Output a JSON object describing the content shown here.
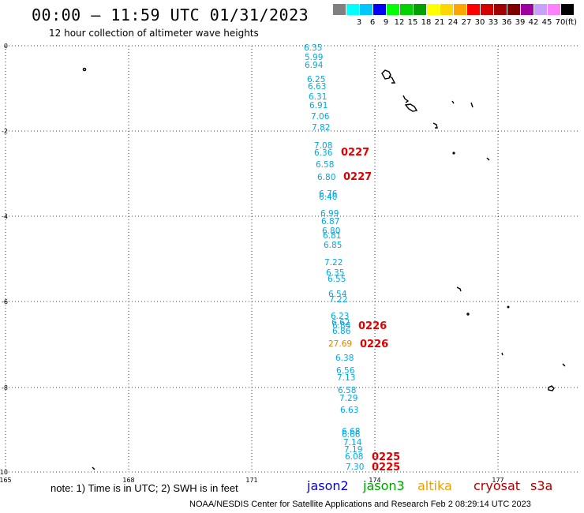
{
  "header": {
    "title": "00:00 – 11:59 UTC 01/31/2023",
    "subtitle": "12 hour collection of altimeter wave heights"
  },
  "color_scale": {
    "unit": "(ft)",
    "swatches": [
      {
        "label": "",
        "color": "#808080"
      },
      {
        "label": "3",
        "color": "#00ffff"
      },
      {
        "label": "6",
        "color": "#00c8ff"
      },
      {
        "label": "9",
        "color": "#0000ff"
      },
      {
        "label": "12",
        "color": "#00ff00"
      },
      {
        "label": "15",
        "color": "#00d200"
      },
      {
        "label": "18",
        "color": "#00a000"
      },
      {
        "label": "21",
        "color": "#ffff00"
      },
      {
        "label": "24",
        "color": "#ffd700"
      },
      {
        "label": "27",
        "color": "#ffa500"
      },
      {
        "label": "30",
        "color": "#ff0000"
      },
      {
        "label": "33",
        "color": "#d20000"
      },
      {
        "label": "36",
        "color": "#a00000"
      },
      {
        "label": "39",
        "color": "#800000"
      },
      {
        "label": "42",
        "color": "#a000a0"
      },
      {
        "label": "45",
        "color": "#c8a0ff"
      },
      {
        "label": "70",
        "color": "#ff80ff"
      },
      {
        "label": "",
        "color": "#000000"
      }
    ]
  },
  "axes": {
    "lon_labels": [
      "165",
      "168",
      "171",
      "174",
      "177"
    ],
    "lat_labels": [
      "0",
      "-2",
      "-4",
      "-6",
      "-8",
      "-10"
    ]
  },
  "wave_heights": [
    {
      "v": "6.35"
    },
    {
      "v": "5.99"
    },
    {
      "v": "6.94"
    },
    {
      "v": "6.25"
    },
    {
      "v": "6.63"
    },
    {
      "v": "6.31"
    },
    {
      "v": "6.91"
    },
    {
      "v": "7.06"
    },
    {
      "v": "7.82"
    },
    {
      "v": "7.08"
    },
    {
      "v": "6.36"
    },
    {
      "v": "6.58"
    },
    {
      "v": "6.80"
    },
    {
      "v": "6.76"
    },
    {
      "v": "6.40"
    },
    {
      "v": "6.99"
    },
    {
      "v": "6.87"
    },
    {
      "v": "6.80"
    },
    {
      "v": "6.81"
    },
    {
      "v": "6.85"
    },
    {
      "v": "7.22"
    },
    {
      "v": "6.35"
    },
    {
      "v": "6.55"
    },
    {
      "v": "6.54"
    },
    {
      "v": "7.22"
    },
    {
      "v": "6.23"
    },
    {
      "v": "6.62"
    },
    {
      "v": "6.84"
    },
    {
      "v": "6.86"
    },
    {
      "v": "27.69",
      "sat": "altika"
    },
    {
      "v": "6.38"
    },
    {
      "v": "6.56"
    },
    {
      "v": "7.13"
    },
    {
      "v": "6.58"
    },
    {
      "v": "7.29"
    },
    {
      "v": "6.63"
    },
    {
      "v": "6.68"
    },
    {
      "v": "6.66"
    },
    {
      "v": "7.14"
    },
    {
      "v": "7.19"
    },
    {
      "v": "6.08"
    },
    {
      "v": "7.30"
    }
  ],
  "time_labels": [
    "0227",
    "0227",
    "0226",
    "0226",
    "0225",
    "0225"
  ],
  "footer": {
    "note": "note:  1) Time is in UTC;  2) SWH is in feet",
    "satellites": [
      {
        "name": "jason2",
        "color": "#0000e0"
      },
      {
        "name": "jason3",
        "color": "#00a000"
      },
      {
        "name": "altika",
        "color": "#f0a000"
      },
      {
        "name": "cryosat",
        "color": "#b00000"
      },
      {
        "name": "s3a",
        "color": "#b00000"
      }
    ],
    "credit": "NOAA/NESDIS Center for Satellite Applications and Research    Feb  2 08:29:14 UTC 2023"
  }
}
